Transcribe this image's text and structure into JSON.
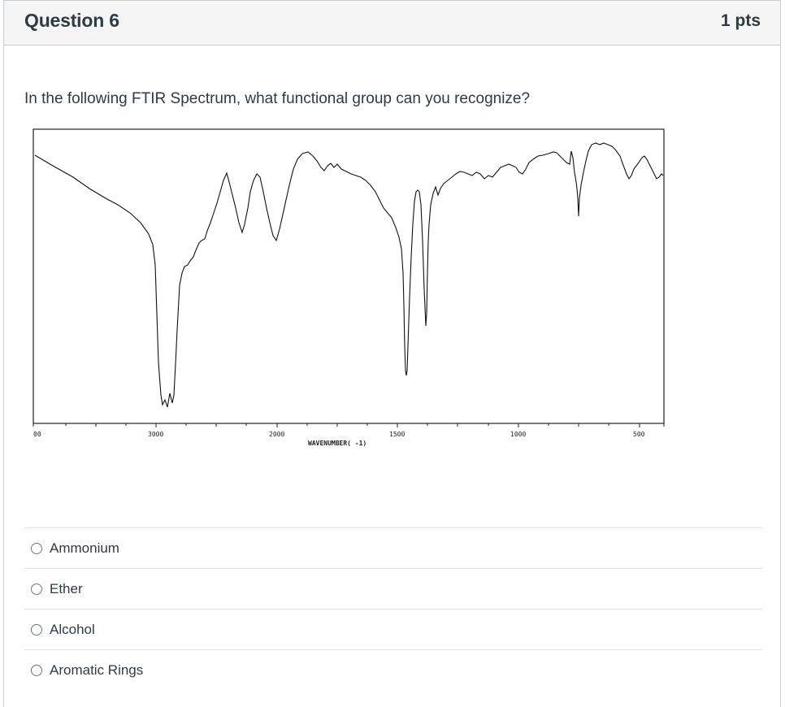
{
  "question": {
    "title": "Question 6",
    "points": "1 pts",
    "prompt": "In the following FTIR Spectrum, what functional group can you recognize?"
  },
  "spectrum": {
    "x_tick_labels": [
      "00",
      "3000",
      "2000",
      "1500",
      "1000",
      "500"
    ],
    "x_axis_title": "WAVENUMBER( -1)"
  },
  "answers": [
    {
      "label": "Ammonium",
      "selected": false
    },
    {
      "label": "Ether",
      "selected": false
    },
    {
      "label": "Alcohol",
      "selected": false
    },
    {
      "label": "Aromatic Rings",
      "selected": false
    }
  ]
}
